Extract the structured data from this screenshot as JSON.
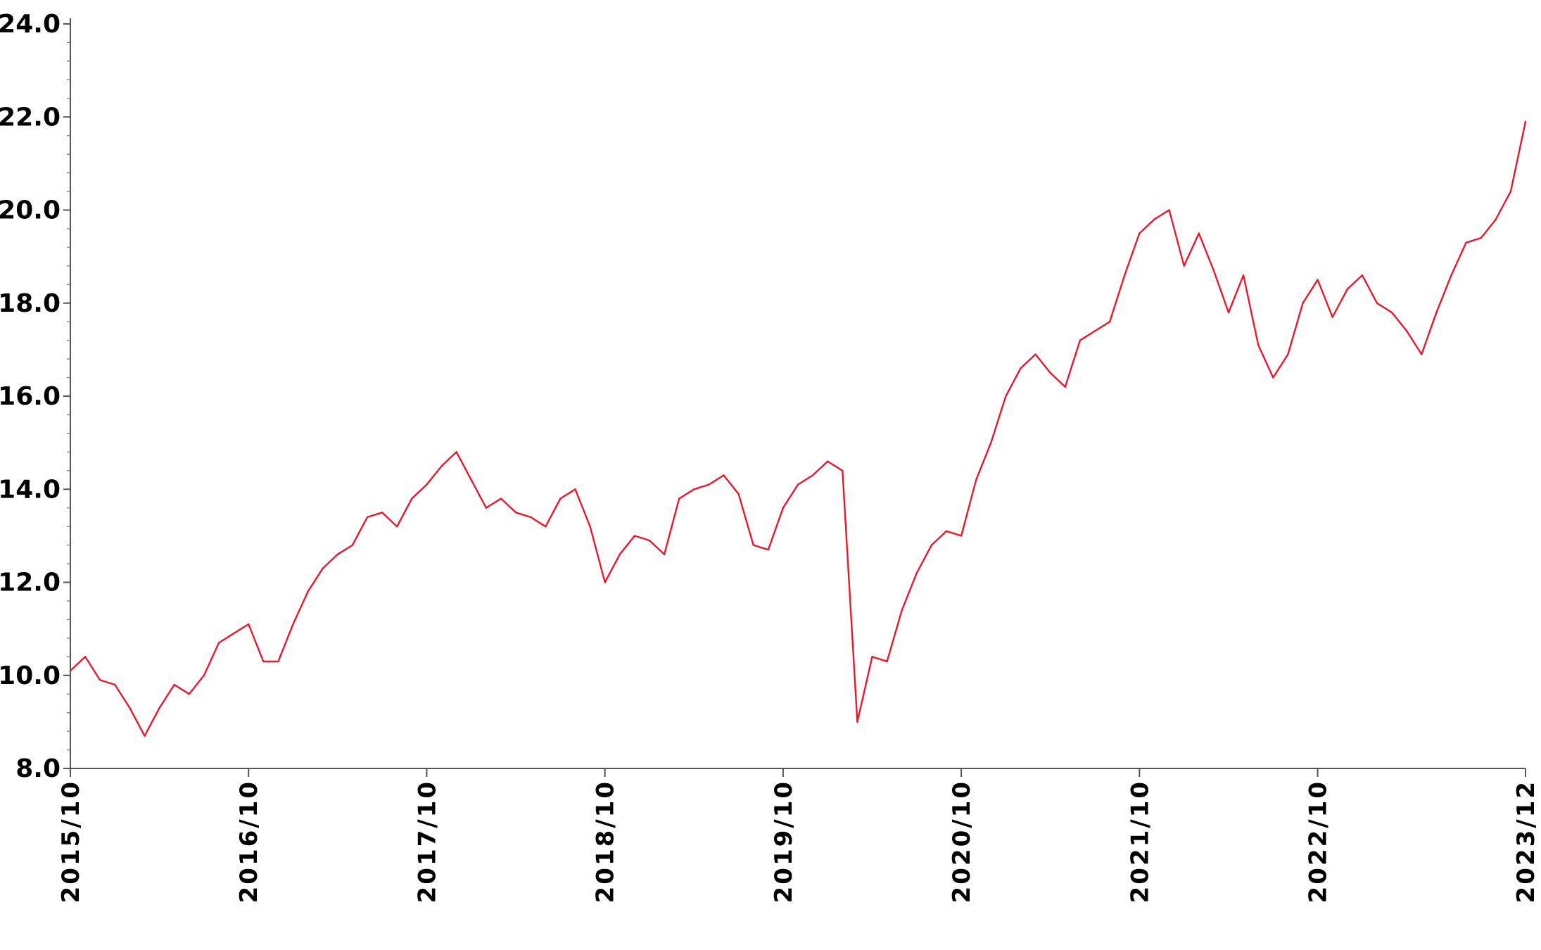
{
  "chart_data": {
    "type": "line",
    "title": "",
    "xlabel": "",
    "ylabel": "",
    "ylim": [
      8.0,
      24.0
    ],
    "xlim": [
      "2015-10",
      "2023-12"
    ],
    "grid": false,
    "legend": "none",
    "line_color": "#e8192c",
    "y_ticks": [
      "8.0",
      "10.0",
      "12.0",
      "14.0",
      "16.0",
      "18.0",
      "20.0",
      "22.0",
      "24.0"
    ],
    "x_ticks": [
      {
        "label": "2015/10",
        "x": "2015-10"
      },
      {
        "label": "2016/10",
        "x": "2016-10"
      },
      {
        "label": "2017/10",
        "x": "2017-10"
      },
      {
        "label": "2018/10",
        "x": "2018-10"
      },
      {
        "label": "2019/10",
        "x": "2019-10"
      },
      {
        "label": "2020/10",
        "x": "2020-10"
      },
      {
        "label": "2021/10",
        "x": "2021-10"
      },
      {
        "label": "2022/10",
        "x": "2022-10"
      },
      {
        "label": "2023/12",
        "x": "2023-12"
      }
    ],
    "series": [
      {
        "x": [
          "2015-10",
          "2015-11",
          "2015-12",
          "2016-01",
          "2016-02",
          "2016-03",
          "2016-04",
          "2016-05",
          "2016-06",
          "2016-07",
          "2016-08",
          "2016-09",
          "2016-10",
          "2016-11",
          "2016-12",
          "2017-01",
          "2017-02",
          "2017-03",
          "2017-04",
          "2017-05",
          "2017-06",
          "2017-07",
          "2017-08",
          "2017-09",
          "2017-10",
          "2017-11",
          "2017-12",
          "2018-01",
          "2018-02",
          "2018-03",
          "2018-04",
          "2018-05",
          "2018-06",
          "2018-07",
          "2018-08",
          "2018-09",
          "2018-10",
          "2018-11",
          "2018-12",
          "2019-01",
          "2019-02",
          "2019-03",
          "2019-04",
          "2019-05",
          "2019-06",
          "2019-07",
          "2019-08",
          "2019-09",
          "2019-10",
          "2019-11",
          "2019-12",
          "2020-01",
          "2020-02",
          "2020-03",
          "2020-04",
          "2020-05",
          "2020-06",
          "2020-07",
          "2020-08",
          "2020-09",
          "2020-10",
          "2020-11",
          "2020-12",
          "2021-01",
          "2021-02",
          "2021-03",
          "2021-04",
          "2021-05",
          "2021-06",
          "2021-07",
          "2021-08",
          "2021-09",
          "2021-10",
          "2021-11",
          "2021-12",
          "2022-01",
          "2022-02",
          "2022-03",
          "2022-04",
          "2022-05",
          "2022-06",
          "2022-07",
          "2022-08",
          "2022-09",
          "2022-10",
          "2022-11",
          "2022-12",
          "2023-01",
          "2023-02",
          "2023-03",
          "2023-04",
          "2023-05",
          "2023-06",
          "2023-07",
          "2023-08",
          "2023-09",
          "2023-10",
          "2023-11",
          "2023-12"
        ],
        "values": [
          10.1,
          10.4,
          9.9,
          9.8,
          9.3,
          8.7,
          9.3,
          9.8,
          9.6,
          10.0,
          10.7,
          10.9,
          11.1,
          10.3,
          10.3,
          11.1,
          11.8,
          12.3,
          12.6,
          12.8,
          13.4,
          13.5,
          13.2,
          13.8,
          14.1,
          14.5,
          14.8,
          14.2,
          13.6,
          13.8,
          13.5,
          13.4,
          13.2,
          13.8,
          14.0,
          13.2,
          12.0,
          12.6,
          13.0,
          12.9,
          12.6,
          13.8,
          14.0,
          14.1,
          14.3,
          13.9,
          12.8,
          12.7,
          13.6,
          14.1,
          14.3,
          14.6,
          14.4,
          9.0,
          10.4,
          10.3,
          11.4,
          12.2,
          12.8,
          13.1,
          13.0,
          14.2,
          15.0,
          16.0,
          16.6,
          16.9,
          16.5,
          16.2,
          17.2,
          17.4,
          17.6,
          18.6,
          19.5,
          19.8,
          20.0,
          18.8,
          19.5,
          18.7,
          17.8,
          18.6,
          17.1,
          16.4,
          16.9,
          18.0,
          18.5,
          17.7,
          18.3,
          18.6,
          18.0,
          17.8,
          17.4,
          16.9,
          17.8,
          18.6,
          19.3,
          19.4,
          19.8,
          20.4,
          21.9
        ]
      }
    ]
  }
}
